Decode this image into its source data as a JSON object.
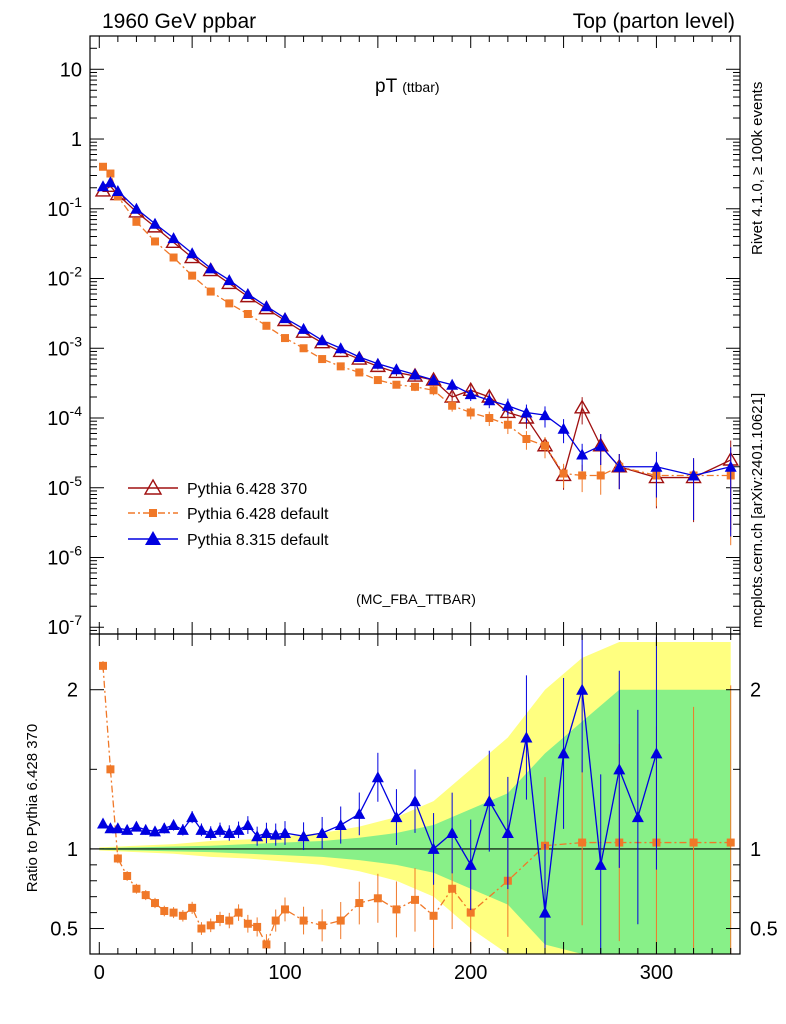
{
  "header": {
    "left_label": "1960 GeV ppbar",
    "right_label": "Top (parton level)"
  },
  "side_labels": {
    "rivet": "Rivet 4.1.0, ≥ 100k events",
    "mcplots": "mcplots.cern.ch [arXiv:2401.10621]"
  },
  "chart_data": [
    {
      "type": "line",
      "panel": "main",
      "title": "pT",
      "title_sub": "(ttbar)",
      "analysis_label": "(MC_FBA_TTBAR)",
      "xlabel": "",
      "ylabel": "",
      "yscale": "log",
      "xlim": [
        -5,
        345
      ],
      "ylim": [
        8e-08,
        30
      ],
      "ytick_labels": [
        "10",
        "1",
        "10^-1",
        "10^-2",
        "10^-3",
        "10^-4",
        "10^-5",
        "10^-6",
        "10^-7"
      ],
      "legend": {
        "placement": "bottom-left",
        "entries": [
          "Pythia 6.428 370",
          "Pythia 6.428 default",
          "Pythia 8.315 default"
        ]
      },
      "series": [
        {
          "name": "Pythia 6.428 370",
          "color": "#a01010",
          "marker": "triangle-open",
          "x": [
            2,
            6,
            10,
            20,
            30,
            40,
            50,
            60,
            70,
            80,
            90,
            100,
            110,
            120,
            130,
            140,
            150,
            160,
            170,
            180,
            190,
            200,
            210,
            220,
            230,
            240,
            250,
            260,
            270,
            280,
            300,
            320,
            340
          ],
          "values": [
            0.18,
            0.21,
            0.16,
            0.09,
            0.055,
            0.033,
            0.02,
            0.013,
            0.0085,
            0.0055,
            0.0037,
            0.0025,
            0.0017,
            0.0012,
            0.0009,
            0.0007,
            0.00055,
            0.00045,
            0.0004,
            0.00035,
            0.0002,
            0.00025,
            0.0002,
            0.00012,
            0.0001,
            4e-05,
            1.5e-05,
            0.00014,
            4e-05,
            2e-05,
            1.4e-05,
            1.4e-05,
            2.5e-05
          ]
        },
        {
          "name": "Pythia 6.428 default",
          "color": "#f07828",
          "marker": "square",
          "x": [
            2,
            6,
            10,
            20,
            30,
            40,
            50,
            60,
            70,
            80,
            90,
            100,
            110,
            120,
            130,
            140,
            150,
            160,
            170,
            180,
            190,
            200,
            210,
            220,
            230,
            240,
            250,
            260,
            270,
            280,
            300,
            320,
            340
          ],
          "values": [
            0.4,
            0.32,
            0.15,
            0.065,
            0.034,
            0.02,
            0.011,
            0.0065,
            0.0044,
            0.0031,
            0.0021,
            0.0014,
            0.001,
            0.0007,
            0.00055,
            0.00045,
            0.00035,
            0.0003,
            0.00028,
            0.00025,
            0.00015,
            0.00012,
            0.0001,
            8e-05,
            5e-05,
            4e-05,
            1.6e-05,
            1.5e-05,
            1.5e-05,
            2e-05,
            1.5e-05,
            1.5e-05,
            1.5e-05
          ]
        },
        {
          "name": "Pythia 8.315 default",
          "color": "#0000e0",
          "marker": "triangle-filled",
          "x": [
            2,
            6,
            10,
            20,
            30,
            40,
            50,
            60,
            70,
            80,
            90,
            100,
            110,
            120,
            130,
            140,
            150,
            160,
            170,
            180,
            190,
            200,
            210,
            220,
            230,
            240,
            250,
            260,
            270,
            280,
            300,
            320,
            340
          ],
          "values": [
            0.21,
            0.24,
            0.18,
            0.1,
            0.061,
            0.038,
            0.023,
            0.014,
            0.0095,
            0.006,
            0.004,
            0.0027,
            0.0019,
            0.0013,
            0.001,
            0.00075,
            0.0006,
            0.0005,
            0.00042,
            0.00035,
            0.0003,
            0.00022,
            0.00018,
            0.00015,
            0.00012,
            0.00011,
            7e-05,
            3e-05,
            4e-05,
            2e-05,
            2e-05,
            1.5e-05,
            2e-05
          ]
        }
      ]
    },
    {
      "type": "line",
      "panel": "ratio",
      "xlabel": "",
      "ylabel": "Ratio to Pythia 6.428 370",
      "xlim": [
        -5,
        345
      ],
      "ylim": [
        0.34,
        2.35
      ],
      "xticks": [
        0,
        100,
        200,
        300
      ],
      "yticks": [
        0.5,
        1,
        2
      ],
      "reference_value": 1,
      "band_inner_color": "#88f088",
      "band_outer_color": "#ffff80",
      "band": {
        "x": [
          0,
          20,
          40,
          60,
          80,
          100,
          120,
          140,
          160,
          180,
          200,
          220,
          240,
          260,
          280,
          300,
          320,
          340
        ],
        "inner": [
          0.005,
          0.01,
          0.015,
          0.02,
          0.03,
          0.04,
          0.05,
          0.07,
          0.1,
          0.15,
          0.25,
          0.35,
          0.6,
          0.8,
          1.0,
          1.0,
          1.0,
          1.0
        ],
        "outer": [
          0.01,
          0.02,
          0.03,
          0.05,
          0.06,
          0.08,
          0.1,
          0.14,
          0.2,
          0.3,
          0.5,
          0.7,
          1.0,
          1.2,
          1.3,
          1.3,
          1.3,
          1.3
        ]
      },
      "series": [
        {
          "name": "Pythia 6.428 default",
          "color": "#f07828",
          "marker": "square",
          "x": [
            2,
            6,
            10,
            15,
            20,
            25,
            30,
            35,
            40,
            45,
            50,
            55,
            60,
            65,
            70,
            75,
            80,
            85,
            90,
            95,
            100,
            110,
            120,
            130,
            140,
            150,
            160,
            170,
            180,
            190,
            200,
            220,
            240,
            260,
            280,
            300,
            320,
            340
          ],
          "values": [
            2.15,
            1.5,
            0.94,
            0.83,
            0.75,
            0.71,
            0.66,
            0.61,
            0.6,
            0.58,
            0.63,
            0.5,
            0.52,
            0.56,
            0.55,
            0.6,
            0.53,
            0.51,
            0.4,
            0.55,
            0.62,
            0.55,
            0.52,
            0.55,
            0.66,
            0.69,
            0.62,
            0.68,
            0.58,
            0.75,
            0.6,
            0.8,
            1.02,
            1.04,
            1.04,
            1.04,
            1.04,
            1.04
          ]
        },
        {
          "name": "Pythia 8.315 default",
          "color": "#0000e0",
          "marker": "triangle-filled",
          "x": [
            2,
            6,
            10,
            15,
            20,
            25,
            30,
            35,
            40,
            45,
            50,
            55,
            60,
            65,
            70,
            75,
            80,
            85,
            90,
            95,
            100,
            110,
            120,
            130,
            140,
            150,
            160,
            170,
            180,
            190,
            200,
            210,
            220,
            230,
            240,
            250,
            260,
            270,
            280,
            290,
            300
          ],
          "values": [
            1.16,
            1.13,
            1.13,
            1.12,
            1.14,
            1.12,
            1.11,
            1.13,
            1.15,
            1.12,
            1.2,
            1.12,
            1.1,
            1.12,
            1.1,
            1.12,
            1.15,
            1.08,
            1.1,
            1.09,
            1.1,
            1.08,
            1.1,
            1.15,
            1.22,
            1.45,
            1.2,
            1.3,
            1.0,
            1.1,
            0.9,
            1.3,
            1.1,
            1.7,
            0.6,
            1.6,
            2.0,
            0.9,
            1.5,
            1.2,
            1.6
          ]
        }
      ]
    }
  ]
}
